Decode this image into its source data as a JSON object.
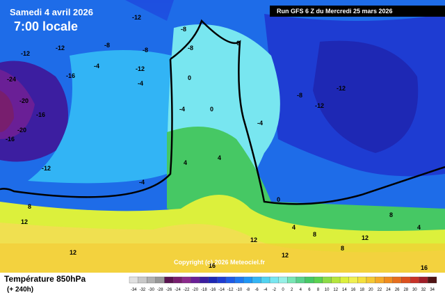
{
  "header": {
    "date": "Samedi 4 avril 2026",
    "time": "7:00 locale",
    "run": "Run GFS 6 Z du Mercredi 25 mars 2026"
  },
  "copyright": "Copyright (c) 2026 Meteociel.fr",
  "footer": {
    "title": "Température 850hPa",
    "range": "(+ 240h)"
  },
  "legend": {
    "labels": [
      -34,
      -32,
      -30,
      -28,
      -26,
      -24,
      -22,
      -20,
      -18,
      -16,
      -14,
      -12,
      -10,
      -8,
      -6,
      -4,
      -2,
      0,
      2,
      4,
      6,
      8,
      10,
      12,
      14,
      16,
      18,
      20,
      22,
      24,
      26,
      28,
      30,
      32,
      34
    ],
    "colors": [
      "#e0e0e0",
      "#c8c8c8",
      "#b0b0b0",
      "#989898",
      "#5a1450",
      "#781e6e",
      "#8c2a8c",
      "#6a1f96",
      "#3c1ea0",
      "#1e28b4",
      "#1e3cd2",
      "#1e5ae6",
      "#1e78f0",
      "#1e96f5",
      "#32b4f5",
      "#50d2f0",
      "#78e6f0",
      "#96f0e6",
      "#78e6b4",
      "#5ad28c",
      "#46c864",
      "#5ad250",
      "#8cdc46",
      "#b4e63c",
      "#dcf03c",
      "#f0f050",
      "#f5e13c",
      "#f5c832",
      "#f5aa28",
      "#f08c1e",
      "#e66e1e",
      "#dc501e",
      "#c83228",
      "#a01e28",
      "#501414"
    ]
  },
  "map_labels": [
    -12,
    -12,
    -8,
    -4,
    -12,
    -8,
    -16,
    -24,
    -20,
    -16,
    -20,
    -16,
    -12,
    -4,
    -8,
    -8,
    -4,
    0,
    0,
    4,
    4,
    -12,
    -12,
    -8,
    -12,
    -4,
    -4,
    0,
    4,
    8,
    12,
    12,
    12,
    16,
    12,
    8,
    8,
    4,
    12,
    16,
    0,
    8
  ]
}
